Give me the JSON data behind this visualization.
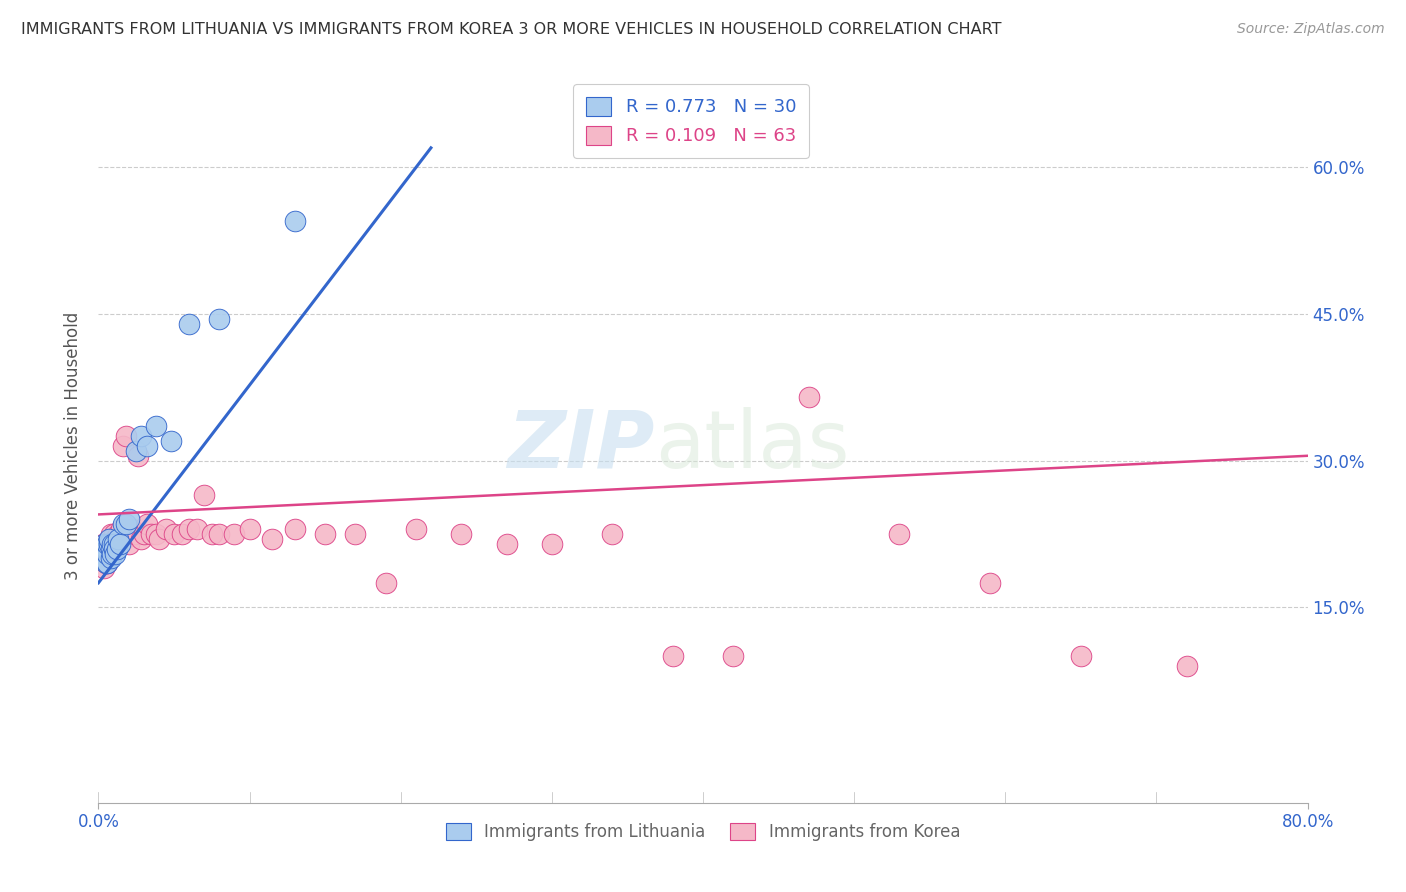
{
  "title": "IMMIGRANTS FROM LITHUANIA VS IMMIGRANTS FROM KOREA 3 OR MORE VEHICLES IN HOUSEHOLD CORRELATION CHART",
  "source": "Source: ZipAtlas.com",
  "ylabel": "3 or more Vehicles in Household",
  "xlim": [
    0.0,
    0.8
  ],
  "ylim": [
    -0.05,
    0.68
  ],
  "xticks": [
    0.0,
    0.8
  ],
  "xticklabels": [
    "0.0%",
    "80.0%"
  ],
  "yticks_right": [
    0.15,
    0.3,
    0.45,
    0.6
  ],
  "yticklabels_right": [
    "15.0%",
    "30.0%",
    "45.0%",
    "60.0%"
  ],
  "gridcolor": "#cccccc",
  "background_color": "#ffffff",
  "lithuania_color": "#aaccee",
  "korea_color": "#f5b8c8",
  "lithuania_line_color": "#3366cc",
  "korea_line_color": "#dd4488",
  "R_lithuania": 0.773,
  "N_lithuania": 30,
  "R_korea": 0.109,
  "N_korea": 63,
  "lithuania_x": [
    0.004,
    0.004,
    0.005,
    0.005,
    0.006,
    0.006,
    0.006,
    0.007,
    0.007,
    0.008,
    0.008,
    0.009,
    0.009,
    0.01,
    0.01,
    0.011,
    0.012,
    0.013,
    0.014,
    0.016,
    0.018,
    0.02,
    0.025,
    0.028,
    0.032,
    0.038,
    0.048,
    0.06,
    0.08,
    0.13
  ],
  "lithuania_y": [
    0.205,
    0.215,
    0.195,
    0.21,
    0.195,
    0.205,
    0.215,
    0.215,
    0.22,
    0.2,
    0.21,
    0.205,
    0.215,
    0.215,
    0.21,
    0.205,
    0.21,
    0.22,
    0.215,
    0.235,
    0.235,
    0.24,
    0.31,
    0.325,
    0.315,
    0.335,
    0.32,
    0.44,
    0.445,
    0.545
  ],
  "korea_x": [
    0.003,
    0.003,
    0.004,
    0.004,
    0.005,
    0.005,
    0.005,
    0.006,
    0.006,
    0.007,
    0.007,
    0.007,
    0.008,
    0.008,
    0.009,
    0.009,
    0.01,
    0.01,
    0.011,
    0.012,
    0.013,
    0.014,
    0.015,
    0.016,
    0.017,
    0.018,
    0.02,
    0.022,
    0.024,
    0.026,
    0.028,
    0.03,
    0.032,
    0.035,
    0.038,
    0.04,
    0.045,
    0.05,
    0.055,
    0.06,
    0.065,
    0.07,
    0.075,
    0.08,
    0.09,
    0.1,
    0.115,
    0.13,
    0.15,
    0.17,
    0.19,
    0.21,
    0.24,
    0.27,
    0.3,
    0.34,
    0.38,
    0.42,
    0.47,
    0.53,
    0.59,
    0.65,
    0.72
  ],
  "korea_y": [
    0.205,
    0.215,
    0.19,
    0.21,
    0.195,
    0.205,
    0.215,
    0.195,
    0.215,
    0.2,
    0.21,
    0.22,
    0.215,
    0.225,
    0.21,
    0.22,
    0.215,
    0.225,
    0.22,
    0.215,
    0.225,
    0.215,
    0.23,
    0.315,
    0.22,
    0.325,
    0.215,
    0.23,
    0.225,
    0.305,
    0.22,
    0.225,
    0.235,
    0.225,
    0.225,
    0.22,
    0.23,
    0.225,
    0.225,
    0.23,
    0.23,
    0.265,
    0.225,
    0.225,
    0.225,
    0.23,
    0.22,
    0.23,
    0.225,
    0.225,
    0.175,
    0.23,
    0.225,
    0.215,
    0.215,
    0.225,
    0.1,
    0.1,
    0.365,
    0.225,
    0.175,
    0.1,
    0.09
  ],
  "lith_trend_x": [
    0.0,
    0.22
  ],
  "lith_trend_y_start": 0.175,
  "lith_trend_y_end": 0.62,
  "korea_trend_x": [
    0.0,
    0.8
  ],
  "korea_trend_y_start": 0.245,
  "korea_trend_y_end": 0.305,
  "watermark_zip": "ZIP",
  "watermark_atlas": "atlas",
  "legend1": "R = 0.773   N = 30",
  "legend2": "R = 0.109   N = 63",
  "legend_label1": "Immigrants from Lithuania",
  "legend_label2": "Immigrants from Korea"
}
